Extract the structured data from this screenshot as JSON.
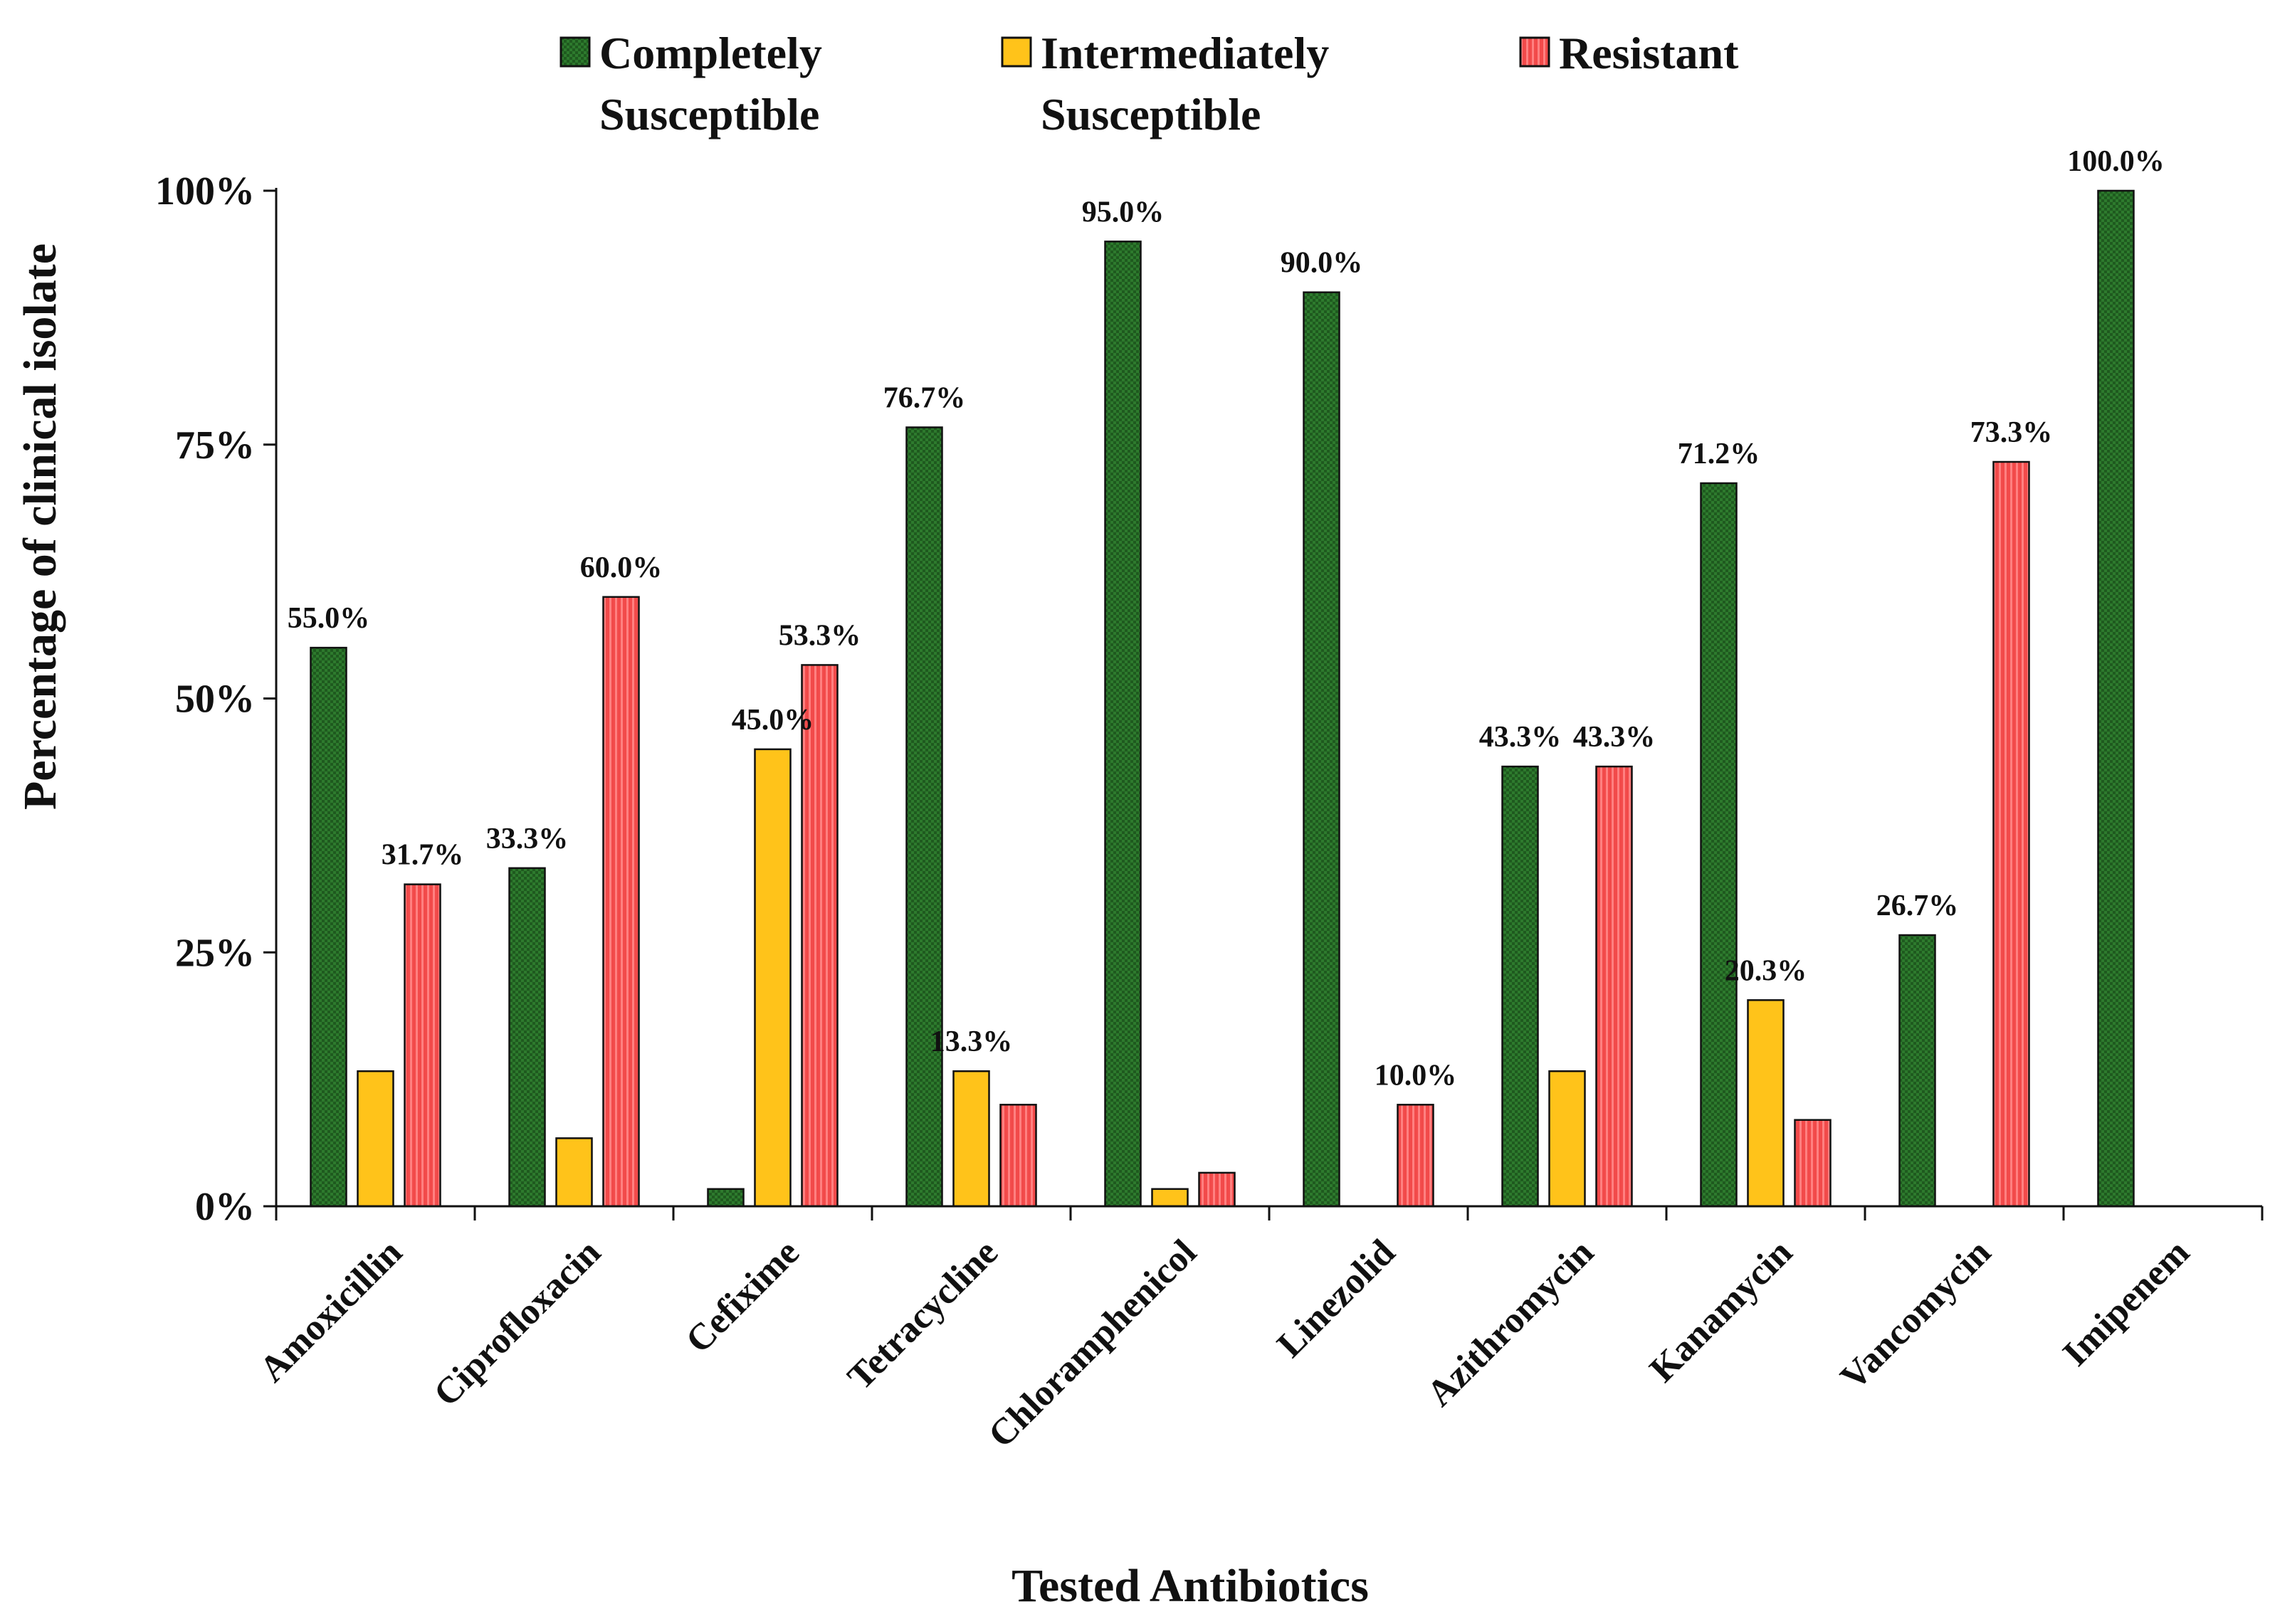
{
  "chart_data": {
    "type": "bar",
    "title": "",
    "xlabel": "Tested Antibiotics",
    "ylabel": "Percentage of clinical isolate",
    "ylim": [
      0,
      100
    ],
    "yticks": [
      0,
      25,
      50,
      75,
      100
    ],
    "ytick_labels": [
      "0%",
      "25%",
      "50%",
      "75%",
      "100%"
    ],
    "legend_position": "top",
    "categories": [
      "Amoxicillin",
      "Ciprofloxacin",
      "Cefixime",
      "Tetracycline",
      "Chloramphenicol",
      "Linezolid",
      "Azithromycin",
      "Kanamycin",
      "Vancomycin",
      "Imipenem"
    ],
    "series": [
      {
        "name": "Completely Susceptible",
        "legend_lines": [
          "Completely",
          "Susceptible"
        ],
        "color": "#2d7a2d",
        "pattern": "checker",
        "values": [
          55.0,
          33.3,
          1.7,
          76.7,
          95.0,
          90.0,
          43.3,
          71.2,
          26.7,
          100.0
        ],
        "labels": [
          "55.0%",
          "33.3%",
          null,
          "76.7%",
          "95.0%",
          "90.0%",
          "43.3%",
          "71.2%",
          "26.7%",
          "100.0%"
        ]
      },
      {
        "name": "Intermediately Susceptible",
        "legend_lines": [
          "Intermediately",
          "Susceptible"
        ],
        "color": "#ffc31a",
        "pattern": "solid",
        "values": [
          13.3,
          6.7,
          45.0,
          13.3,
          1.7,
          0,
          13.3,
          20.3,
          0,
          0
        ],
        "labels": [
          null,
          null,
          "45.0%",
          "13.3%",
          null,
          null,
          null,
          "20.3%",
          null,
          null
        ]
      },
      {
        "name": "Resistant",
        "legend_lines": [
          "Resistant"
        ],
        "color": "#f24a4a",
        "pattern": "stripe",
        "values": [
          31.7,
          60.0,
          53.3,
          10.0,
          3.3,
          10.0,
          43.3,
          8.5,
          73.3,
          0
        ],
        "labels": [
          "31.7%",
          "60.0%",
          "53.3%",
          null,
          null,
          "10.0%",
          "43.3%",
          null,
          "73.3%",
          null
        ]
      }
    ]
  }
}
